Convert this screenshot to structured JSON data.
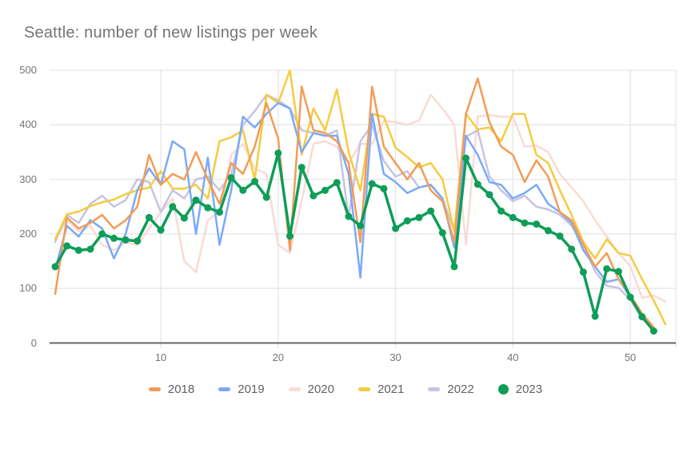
{
  "header": {
    "title": "Seattle: number of new listings per week"
  },
  "palette": {
    "title_text": "#757575",
    "axis_text": "#757575",
    "legend_text": "#616161",
    "gridline": "#e6e6e6",
    "baseline": "#666666",
    "background": "#ffffff"
  },
  "chart_data": {
    "type": "line",
    "title": "Seattle: number of new listings per week",
    "xlabel": "",
    "ylabel": "",
    "xlim": [
      1,
      53
    ],
    "ylim": [
      0,
      500
    ],
    "grid": true,
    "legend_position": "bottom",
    "x_ticks": [
      10,
      20,
      30,
      40,
      50
    ],
    "y_ticks": [
      0,
      100,
      200,
      300,
      400,
      500
    ],
    "x_unit": "week number",
    "series": [
      {
        "name": "2018",
        "color": "#F29C59",
        "line_width": 2.5,
        "marker": "none",
        "values": [
          90,
          230,
          210,
          220,
          235,
          210,
          225,
          250,
          345,
          290,
          310,
          300,
          350,
          300,
          255,
          330,
          310,
          360,
          440,
          375,
          170,
          470,
          390,
          385,
          370,
          330,
          185,
          470,
          360,
          330,
          300,
          330,
          280,
          260,
          185,
          420,
          485,
          405,
          360,
          345,
          295,
          335,
          305,
          240,
          225,
          180,
          140,
          165,
          117,
          88,
          54,
          29
        ]
      },
      {
        "name": "2019",
        "color": "#7BAAF7",
        "line_width": 2.5,
        "marker": "none",
        "values": [
          135,
          215,
          195,
          225,
          210,
          155,
          200,
          280,
          320,
          290,
          370,
          355,
          200,
          340,
          180,
          280,
          415,
          395,
          420,
          440,
          430,
          350,
          385,
          380,
          380,
          310,
          120,
          420,
          310,
          295,
          275,
          285,
          290,
          265,
          175,
          380,
          345,
          295,
          290,
          265,
          275,
          290,
          255,
          240,
          220,
          170,
          140,
          112,
          117,
          84,
          49,
          29
        ]
      },
      {
        "name": "2020",
        "color": "#F8DBD6",
        "line_width": 2.5,
        "marker": "none",
        "values": [
          190,
          225,
          205,
          215,
          180,
          170,
          185,
          180,
          210,
          240,
          265,
          150,
          130,
          225,
          240,
          345,
          365,
          320,
          310,
          180,
          165,
          260,
          365,
          370,
          360,
          330,
          365,
          365,
          407,
          405,
          400,
          408,
          455,
          430,
          400,
          180,
          415,
          418,
          415,
          415,
          360,
          362,
          350,
          310,
          285,
          260,
          225,
          195,
          165,
          141,
          83,
          87,
          76
        ]
      },
      {
        "name": "2021",
        "color": "#F5CB40",
        "line_width": 2.5,
        "marker": "none",
        "values": [
          190,
          236,
          241,
          251,
          258,
          263,
          273,
          280,
          285,
          315,
          283,
          283,
          290,
          265,
          370,
          377,
          390,
          300,
          455,
          440,
          500,
          345,
          430,
          390,
          465,
          350,
          280,
          420,
          415,
          358,
          341,
          322,
          330,
          300,
          205,
          420,
          392,
          395,
          370,
          420,
          420,
          345,
          330,
          280,
          235,
          185,
          155,
          190,
          165,
          160,
          117,
          78,
          34
        ]
      },
      {
        "name": "2022",
        "color": "#C7C3E2",
        "line_width": 2.5,
        "marker": "none",
        "values": [
          185,
          235,
          220,
          255,
          270,
          250,
          262,
          300,
          295,
          240,
          280,
          265,
          300,
          305,
          280,
          310,
          400,
          425,
          455,
          445,
          430,
          390,
          385,
          380,
          390,
          230,
          370,
          400,
          334,
          305,
          315,
          285,
          290,
          265,
          205,
          378,
          390,
          305,
          280,
          260,
          270,
          250,
          245,
          235,
          215,
          180,
          131,
          105,
          101,
          80,
          44,
          27
        ]
      },
      {
        "name": "2023",
        "color": "#0F9D58",
        "line_width": 3.5,
        "marker": "circle",
        "marker_radius": 4.5,
        "values": [
          140,
          178,
          170,
          172,
          200,
          192,
          189,
          187,
          230,
          207,
          250,
          229,
          262,
          248,
          240,
          303,
          280,
          296,
          267,
          348,
          196,
          322,
          270,
          280,
          294,
          232,
          215,
          292,
          283,
          210,
          224,
          230,
          242,
          202,
          140,
          339,
          291,
          272,
          242,
          230,
          220,
          218,
          206,
          196,
          172,
          130,
          49,
          136,
          131,
          84,
          48,
          22
        ]
      }
    ]
  },
  "legend": {
    "items": [
      "2018",
      "2019",
      "2020",
      "2021",
      "2022",
      "2023"
    ]
  }
}
